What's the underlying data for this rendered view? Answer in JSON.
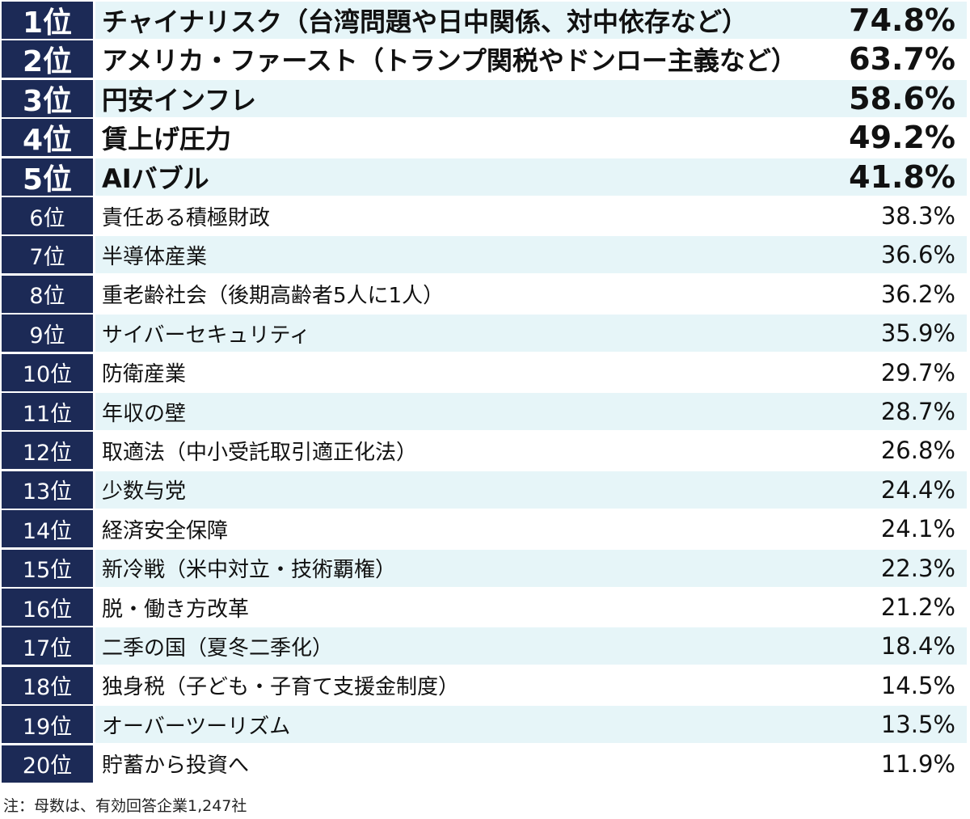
{
  "chart_data": {
    "type": "table",
    "rows": [
      {
        "rank": "1位",
        "label": "チャイナリスク（台湾問題や日中関係、対中依存など）",
        "value": "74.8%",
        "percent": 74.8
      },
      {
        "rank": "2位",
        "label": "アメリカ・ファースト（トランプ関税やドンロー主義など）",
        "value": "63.7%",
        "percent": 63.7
      },
      {
        "rank": "3位",
        "label": "円安インフレ",
        "value": "58.6%",
        "percent": 58.6
      },
      {
        "rank": "4位",
        "label": "賃上げ圧力",
        "value": "49.2%",
        "percent": 49.2
      },
      {
        "rank": "5位",
        "label": "AIバブル",
        "value": "41.8%",
        "percent": 41.8
      },
      {
        "rank": "6位",
        "label": "責任ある積極財政",
        "value": "38.3%",
        "percent": 38.3
      },
      {
        "rank": "7位",
        "label": "半導体産業",
        "value": "36.6%",
        "percent": 36.6
      },
      {
        "rank": "8位",
        "label": "重老齢社会（後期高齢者5人に1人）",
        "value": "36.2%",
        "percent": 36.2
      },
      {
        "rank": "9位",
        "label": "サイバーセキュリティ",
        "value": "35.9%",
        "percent": 35.9
      },
      {
        "rank": "10位",
        "label": "防衛産業",
        "value": "29.7%",
        "percent": 29.7
      },
      {
        "rank": "11位",
        "label": "年収の壁",
        "value": "28.7%",
        "percent": 28.7
      },
      {
        "rank": "12位",
        "label": "取適法（中小受託取引適正化法）",
        "value": "26.8%",
        "percent": 26.8
      },
      {
        "rank": "13位",
        "label": "少数与党",
        "value": "24.4%",
        "percent": 24.4
      },
      {
        "rank": "14位",
        "label": "経済安全保障",
        "value": "24.1%",
        "percent": 24.1
      },
      {
        "rank": "15位",
        "label": "新冷戦（米中対立・技術覇権）",
        "value": "22.3%",
        "percent": 22.3
      },
      {
        "rank": "16位",
        "label": "脱・働き方改革",
        "value": "21.2%",
        "percent": 21.2
      },
      {
        "rank": "17位",
        "label": "二季の国（夏冬二季化）",
        "value": "18.4%",
        "percent": 18.4
      },
      {
        "rank": "18位",
        "label": "独身税（子ども・子育て支援金制度）",
        "value": "14.5%",
        "percent": 14.5
      },
      {
        "rank": "19位",
        "label": "オーバーツーリズム",
        "value": "13.5%",
        "percent": 13.5
      },
      {
        "rank": "20位",
        "label": "貯蓄から投資へ",
        "value": "11.9%",
        "percent": 11.9
      }
    ]
  },
  "colors": {
    "rank_background": "#1c2a56",
    "rank_text": "#ffffff",
    "shaded_row": "#e6f5f8",
    "plain_row": "#ffffff",
    "text": "#111111"
  },
  "footnote": "注：母数は、有効回答企業1,247社"
}
